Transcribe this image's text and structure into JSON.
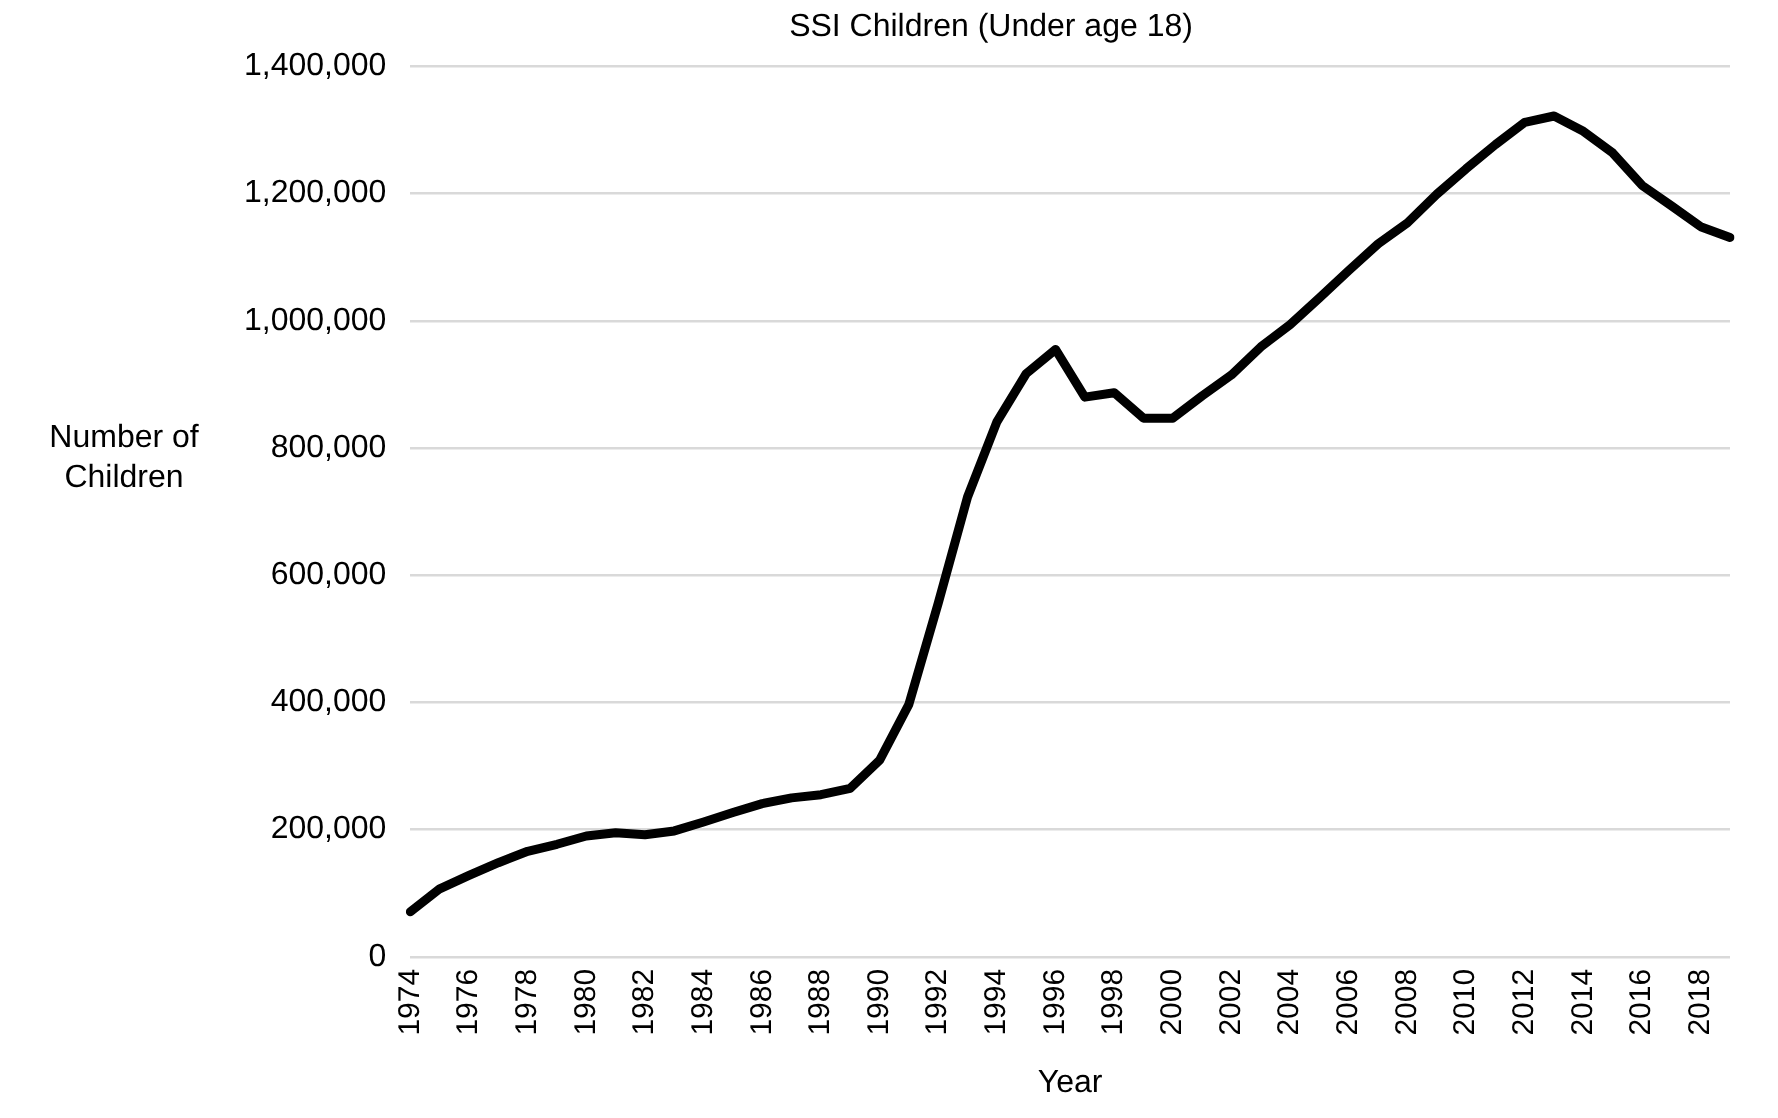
{
  "chart_data": {
    "type": "line",
    "title": "SSI Children (Under age 18)",
    "xlabel": "Year",
    "ylabel": "Number of Children",
    "categories": [
      "1974",
      null,
      "1976",
      null,
      "1978",
      null,
      "1980",
      null,
      "1982",
      null,
      "1984",
      null,
      "1986",
      null,
      "1988",
      null,
      "1990",
      null,
      "1992",
      null,
      "1994",
      null,
      "1996",
      null,
      "1998",
      null,
      "2000",
      null,
      "2002",
      null,
      "2004",
      null,
      "2006",
      null,
      "2008",
      null,
      "2010",
      null,
      "2012",
      null,
      "2014",
      null,
      "2016",
      null,
      "2018",
      null
    ],
    "series": [
      {
        "color": "#000000",
        "values": [
          71000,
          107000,
          128000,
          148000,
          166000,
          177000,
          190000,
          195000,
          192000,
          198000,
          212000,
          227000,
          241000,
          250000,
          255000,
          265000,
          309000,
          397000,
          556000,
          723000,
          841000,
          917000,
          955000,
          880000,
          887000,
          847000,
          847000,
          882000,
          915000,
          959000,
          994000,
          1036000,
          1079000,
          1121000,
          1154000,
          1199000,
          1239000,
          1277000,
          1312000,
          1322000,
          1298000,
          1264000,
          1213000,
          1181000,
          1148000,
          1131000
        ]
      }
    ],
    "ylim": [
      0,
      1400000
    ],
    "yticks": [
      {
        "value": 0,
        "label": "0"
      },
      {
        "value": 200000,
        "label": "200,000"
      },
      {
        "value": 400000,
        "label": "400,000"
      },
      {
        "value": 600000,
        "label": "600,000"
      },
      {
        "value": 800000,
        "label": "800,000"
      },
      {
        "value": 1000000,
        "label": "1,000,000"
      },
      {
        "value": 1200000,
        "label": "1,200,000"
      },
      {
        "value": 1400000,
        "label": "1,400,000"
      }
    ],
    "grid": "y",
    "legend": false,
    "marker": "none",
    "line_style": "solid"
  }
}
